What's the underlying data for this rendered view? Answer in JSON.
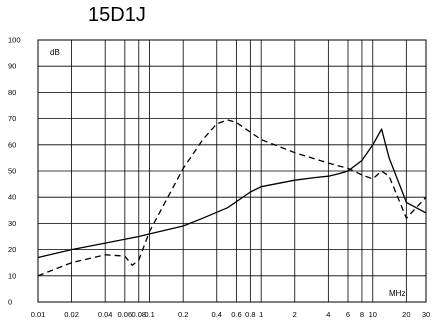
{
  "chart_data": {
    "type": "line",
    "title": "15D1J",
    "ylabel": "dB",
    "xlabel": "MHz",
    "xscale": "log",
    "xlim": [
      0.01,
      30
    ],
    "ylim": [
      0,
      100
    ],
    "grid": true,
    "yticks": [
      0,
      10,
      20,
      30,
      40,
      50,
      60,
      70,
      80,
      90,
      100
    ],
    "ytick_labels": [
      "0",
      "10",
      "20",
      "30",
      "40",
      "50",
      "60",
      "70",
      "80",
      "90",
      "100"
    ],
    "xticks": [
      0.01,
      0.02,
      0.04,
      0.06,
      0.08,
      0.1,
      0.2,
      0.4,
      0.6,
      0.8,
      1,
      2,
      4,
      6,
      8,
      10,
      20,
      30
    ],
    "xtick_labels": [
      "0.01",
      "0.02",
      "0.04",
      "0.06",
      "0.08",
      "0.1",
      "0.2",
      "0.4",
      "0.6",
      "0.8",
      "1",
      "2",
      "4",
      "6",
      "8",
      "10",
      "20",
      "30"
    ],
    "series": [
      {
        "style": "solid",
        "x": [
          0.01,
          0.02,
          0.04,
          0.08,
          0.1,
          0.2,
          0.3,
          0.5,
          0.8,
          1,
          2,
          3,
          4,
          5,
          6,
          8,
          10,
          12,
          14,
          20,
          30
        ],
        "y": [
          17,
          20,
          22.5,
          25,
          26,
          29,
          32,
          36,
          42,
          44,
          46.5,
          47.5,
          48,
          49,
          50,
          54,
          60,
          66,
          55,
          38,
          34
        ]
      },
      {
        "style": "dashed",
        "x": [
          0.01,
          0.02,
          0.04,
          0.06,
          0.07,
          0.08,
          0.1,
          0.2,
          0.3,
          0.4,
          0.5,
          0.6,
          1,
          2,
          4,
          6,
          8,
          10,
          12,
          14,
          20,
          30
        ],
        "y": [
          10,
          15,
          18,
          17.5,
          14,
          16,
          27,
          51,
          62,
          68,
          69.5,
          68.5,
          62,
          57,
          53,
          51,
          48.5,
          47,
          50,
          48,
          32,
          40
        ]
      }
    ]
  }
}
